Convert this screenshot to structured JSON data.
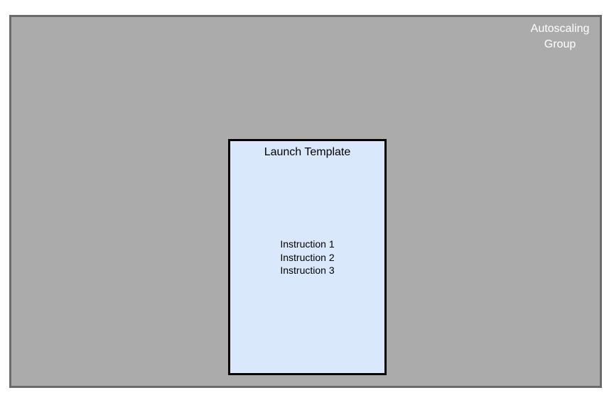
{
  "autoscaling_group": {
    "label": "Autoscaling\nGroup",
    "fill_color": "#ababab",
    "border_color": "#6b6b6b",
    "text_color": "#ffffff"
  },
  "launch_template": {
    "title": "Launch Template",
    "fill_color": "#dae8fc",
    "border_color": "#000000",
    "instructions": [
      "Instruction 1",
      "Instruction 2",
      "Instruction 3"
    ]
  }
}
